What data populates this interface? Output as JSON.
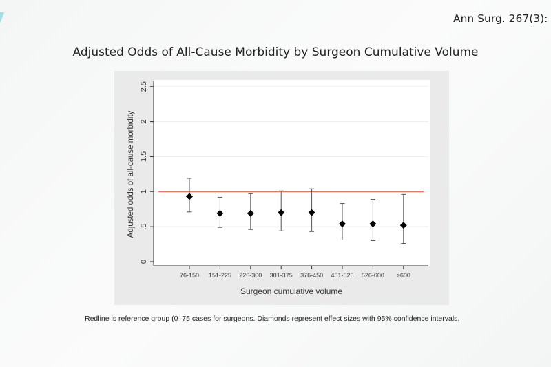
{
  "citation": "Ann Surg. 267(3):",
  "slide_title": "Adjusted Odds of All-Cause Morbidity by Surgeon Cumulative Volume",
  "caption": "Redline is reference group (0–75 cases for surgeons. Diamonds represent effect sizes with 95% confidence intervals.",
  "chart_data": {
    "type": "scatter",
    "xlabel": "Surgeon cumulative volume",
    "ylabel": "Adjusted odds of all-cause morbidity",
    "categories": [
      "76-150",
      "151-225",
      "226-300",
      "301-375",
      "376-450",
      "451-525",
      "526-600",
      ">600"
    ],
    "values": [
      0.93,
      0.69,
      0.69,
      0.7,
      0.7,
      0.54,
      0.54,
      0.52
    ],
    "ci_lower": [
      0.71,
      0.49,
      0.46,
      0.44,
      0.43,
      0.31,
      0.3,
      0.26
    ],
    "ci_upper": [
      1.19,
      0.92,
      0.97,
      1.01,
      1.04,
      0.83,
      0.89,
      0.96
    ],
    "reference_line": 1,
    "ylim": [
      0,
      2.5
    ],
    "yticks": [
      0,
      0.5,
      1,
      1.5,
      2,
      2.5
    ],
    "ytick_labels": [
      "0",
      ".5",
      "1",
      "1.5",
      "2",
      "2.5"
    ],
    "grid": true,
    "colors": {
      "reference_line": "#f0715a",
      "marker": "#000000",
      "errorbar": "#555555"
    }
  }
}
